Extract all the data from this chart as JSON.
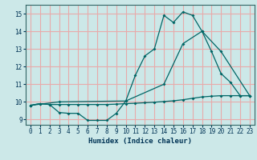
{
  "xlabel": "Humidex (Indice chaleur)",
  "background_color": "#cce8e8",
  "grid_color": "#e8aaaa",
  "line_color": "#006666",
  "xlim": [
    -0.5,
    23.5
  ],
  "ylim": [
    8.7,
    15.5
  ],
  "xticks": [
    0,
    1,
    2,
    3,
    4,
    5,
    6,
    7,
    8,
    9,
    10,
    11,
    12,
    13,
    14,
    15,
    16,
    17,
    18,
    19,
    20,
    21,
    22,
    23
  ],
  "yticks": [
    9,
    10,
    11,
    12,
    13,
    14,
    15
  ],
  "line1_x": [
    0,
    1,
    2,
    3,
    4,
    5,
    6,
    7,
    8,
    9,
    10,
    11,
    12,
    13,
    14,
    15,
    16,
    17,
    18,
    19,
    20,
    21,
    22,
    23
  ],
  "line1_y": [
    9.8,
    9.9,
    9.85,
    9.4,
    9.35,
    9.35,
    8.95,
    8.95,
    8.95,
    9.35,
    10.05,
    11.5,
    12.6,
    13.0,
    14.9,
    14.5,
    15.1,
    14.9,
    14.0,
    12.85,
    11.6,
    11.1,
    10.35,
    10.35
  ],
  "line2_x": [
    0,
    3,
    10,
    14,
    16,
    18,
    20,
    23
  ],
  "line2_y": [
    9.8,
    10.0,
    10.05,
    11.0,
    13.3,
    14.0,
    12.85,
    10.35
  ],
  "line3_x": [
    0,
    1,
    2,
    3,
    4,
    5,
    6,
    7,
    8,
    9,
    10,
    11,
    12,
    13,
    14,
    15,
    16,
    17,
    18,
    19,
    20,
    21,
    22,
    23
  ],
  "line3_y": [
    9.8,
    9.9,
    9.85,
    9.85,
    9.85,
    9.85,
    9.85,
    9.85,
    9.85,
    9.87,
    9.9,
    9.92,
    9.95,
    9.98,
    10.02,
    10.06,
    10.12,
    10.2,
    10.28,
    10.32,
    10.35,
    10.35,
    10.35,
    10.35
  ]
}
